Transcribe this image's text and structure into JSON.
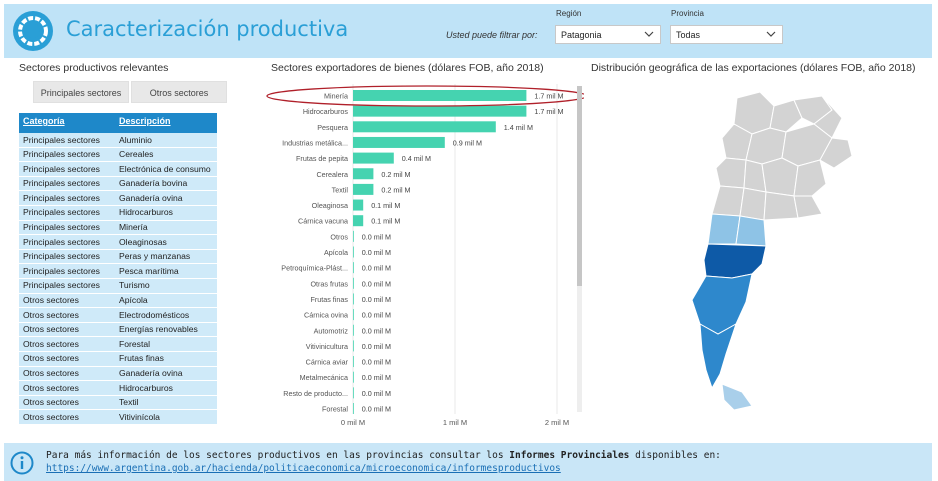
{
  "header": {
    "title": "Caracterización productiva",
    "filter_label": "Usted puede filtrar por:",
    "region_caption": "Región",
    "region_value": "Patagonia",
    "province_caption": "Provincia",
    "province_value": "Todas"
  },
  "left": {
    "title": "Sectores productivos relevantes",
    "btn_principal": "Principales sectores",
    "btn_otros": "Otros sectores",
    "col_categoria": "Categoría",
    "col_descripcion": "Descripción",
    "rows": [
      [
        "Principales sectores",
        "Aluminio"
      ],
      [
        "Principales sectores",
        "Cereales"
      ],
      [
        "Principales sectores",
        "Electrónica de consumo"
      ],
      [
        "Principales sectores",
        "Ganadería bovina"
      ],
      [
        "Principales sectores",
        "Ganadería ovina"
      ],
      [
        "Principales sectores",
        "Hidrocarburos"
      ],
      [
        "Principales sectores",
        "Minería"
      ],
      [
        "Principales sectores",
        "Oleaginosas"
      ],
      [
        "Principales sectores",
        "Peras y manzanas"
      ],
      [
        "Principales sectores",
        "Pesca marítima"
      ],
      [
        "Principales sectores",
        "Turismo"
      ],
      [
        "Otros sectores",
        "Apícola"
      ],
      [
        "Otros sectores",
        "Electrodomésticos"
      ],
      [
        "Otros sectores",
        "Energías renovables"
      ],
      [
        "Otros sectores",
        "Forestal"
      ],
      [
        "Otros sectores",
        "Frutas finas"
      ],
      [
        "Otros sectores",
        "Ganadería ovina"
      ],
      [
        "Otros sectores",
        "Hidrocarburos"
      ],
      [
        "Otros sectores",
        "Textil"
      ],
      [
        "Otros sectores",
        "Vitivinícola"
      ]
    ]
  },
  "middle": {
    "title": "Sectores exportadores de bienes (dólares FOB, año 2018)"
  },
  "right": {
    "title": "Distribución geográfica de las exportaciones (dólares FOB, año 2018)"
  },
  "footer": {
    "text_prefix": "Para más información de los sectores productivos en las provincias consultar los ",
    "text_bold": "Informes Provinciales",
    "text_suffix": " disponibles en:",
    "link": "https://www.argentina.gob.ar/hacienda/politicaeconomica/microeconomica/informesproductivos"
  },
  "colors": {
    "bar": "#45d3b0",
    "header_bg": "#bfe3f7",
    "table_header": "#1e88c9",
    "table_row": "#cfeaf9",
    "highlight_ellipse": "#b0202a"
  },
  "chart_data": {
    "type": "bar",
    "orientation": "horizontal",
    "categories": [
      "Minería",
      "Hidrocarburos",
      "Pesquera",
      "Industrias metálica...",
      "Frutas de pepita",
      "Cerealera",
      "Textil",
      "Oleaginosa",
      "Cárnica vacuna",
      "Otros",
      "Apícola",
      "Petroquímica-Plást...",
      "Otras frutas",
      "Frutas finas",
      "Cárnica ovina",
      "Automotriz",
      "Vitivinicultura",
      "Cárnica aviar",
      "Metalmecánica",
      "Resto de producto...",
      "Forestal"
    ],
    "values": [
      1.7,
      1.7,
      1.4,
      0.9,
      0.4,
      0.2,
      0.2,
      0.1,
      0.1,
      0.0,
      0.0,
      0.0,
      0.0,
      0.0,
      0.0,
      0.0,
      0.0,
      0.0,
      0.0,
      0.0,
      0.0
    ],
    "value_labels": [
      "1.7 mil M",
      "1.7 mil M",
      "1.4 mil M",
      "0.9 mil M",
      "0.4 mil M",
      "0.2 mil M",
      "0.2 mil M",
      "0.1 mil M",
      "0.1 mil M",
      "0.0 mil M",
      "0.0 mil M",
      "0.0 mil M",
      "0.0 mil M",
      "0.0 mil M",
      "0.0 mil M",
      "0.0 mil M",
      "0.0 mil M",
      "0.0 mil M",
      "0.0 mil M",
      "0.0 mil M",
      "0.0 mil M"
    ],
    "title": "Sectores exportadores de bienes (dólares FOB, año 2018)",
    "xlim": [
      0,
      2
    ],
    "xticks": [
      0,
      1,
      2
    ],
    "xtick_labels": [
      "0 mil M",
      "1 mil M",
      "2 mil M"
    ],
    "highlight": "Minería"
  }
}
